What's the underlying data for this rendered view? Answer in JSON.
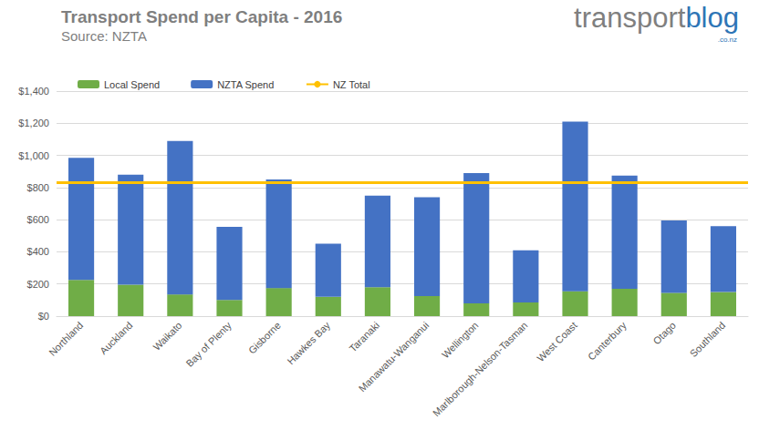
{
  "chart_data": {
    "type": "bar",
    "title": "Transport Spend per Capita - 2016",
    "subtitle": "Source: NZTA",
    "logo": {
      "parts": [
        "transport",
        "blog"
      ],
      "suffix": ".co.nz"
    },
    "categories": [
      "Northland",
      "Auckland",
      "Waikato",
      "Bay of Plenty",
      "Gisborne",
      "Hawkes Bay",
      "Taranaki",
      "Manawatu-Wanganui",
      "Wellington",
      "Marlborough-Nelson-Tasman",
      "West Coast",
      "Canterbury",
      "Otago",
      "Southland"
    ],
    "series": [
      {
        "name": "Local Spend",
        "type": "bar",
        "color": "#70ad47",
        "values": [
          225,
          195,
          135,
          100,
          175,
          120,
          180,
          125,
          80,
          85,
          155,
          170,
          145,
          150
        ]
      },
      {
        "name": "NZTA Spend",
        "type": "bar",
        "color": "#4472c4",
        "values": [
          760,
          685,
          955,
          455,
          675,
          330,
          570,
          615,
          810,
          325,
          1055,
          705,
          450,
          410
        ]
      },
      {
        "name": "NZ Total",
        "type": "line",
        "color": "#ffc000",
        "values": [
          830,
          830,
          830,
          830,
          830,
          830,
          830,
          830,
          830,
          830,
          830,
          830,
          830,
          830
        ]
      }
    ],
    "stacked": true,
    "ylim": [
      0,
      1400
    ],
    "yticks": [
      {
        "value": 0,
        "label": "$0"
      },
      {
        "value": 200,
        "label": "$200"
      },
      {
        "value": 400,
        "label": "$400"
      },
      {
        "value": 600,
        "label": "$600"
      },
      {
        "value": 800,
        "label": "$800"
      },
      {
        "value": 1000,
        "label": "$1,000"
      },
      {
        "value": 1200,
        "label": "$1,200"
      },
      {
        "value": 1400,
        "label": "$1,400"
      }
    ],
    "grid": true,
    "legend": "top-left"
  }
}
